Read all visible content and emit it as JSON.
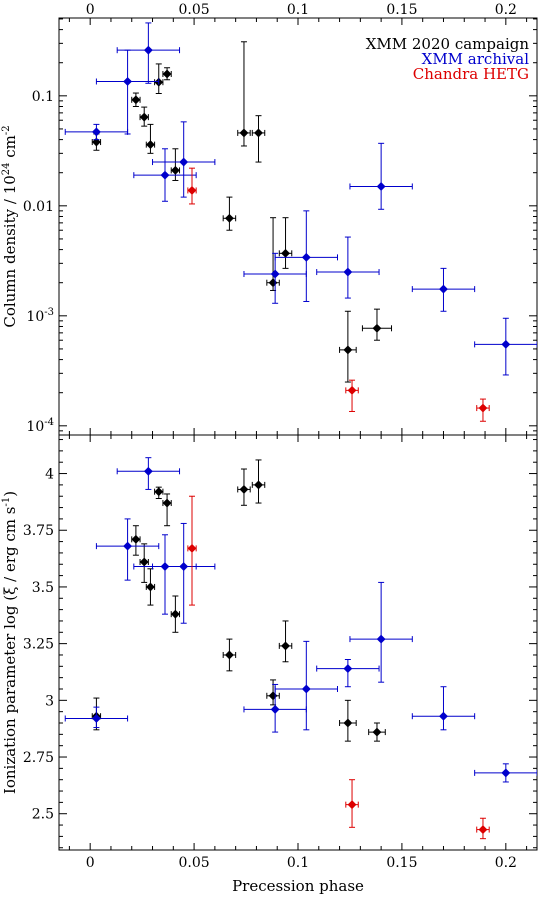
{
  "chart_data": [
    {
      "type": "scatter",
      "panel": "top",
      "ylabel": "Column density / 10",
      "ylabel_exp": "24",
      "ylabel_unit": " cm",
      "ylabel_unit_exp": "-2",
      "yscale": "log",
      "xlim": [
        -0.015,
        0.215
      ],
      "ylim": [
        8.25e-05,
        0.51
      ],
      "x_ticks": [
        0,
        0.05,
        0.1,
        0.15,
        0.2
      ],
      "x_tick_labels": [
        "0",
        "0.05",
        "0.1",
        "0.15",
        "0.2"
      ],
      "y_ticks": [
        0.1,
        0.01
      ],
      "y_tick_labels": [
        "0.1",
        "0.01"
      ],
      "y_ticks_pow": [
        {
          "value": 0.001,
          "base": "10",
          "exp": "-3"
        },
        {
          "value": 0.0001,
          "base": "10",
          "exp": "-4"
        }
      ],
      "legend_position": "top-right",
      "series": [
        {
          "name": "XMM 2020 campaign",
          "color": "#000000",
          "points": [
            {
              "x": 0.003,
              "xerr": 0.002,
              "y": 0.038,
              "ylo": 0.032,
              "yhi": 0.045
            },
            {
              "x": 0.022,
              "xerr": 0.002,
              "y": 0.092,
              "ylo": 0.08,
              "yhi": 0.106
            },
            {
              "x": 0.026,
              "xerr": 0.002,
              "y": 0.064,
              "ylo": 0.053,
              "yhi": 0.079
            },
            {
              "x": 0.029,
              "xerr": 0.002,
              "y": 0.036,
              "ylo": 0.03,
              "yhi": 0.055
            },
            {
              "x": 0.033,
              "xerr": 0.002,
              "y": 0.133,
              "ylo": 0.105,
              "yhi": 0.195
            },
            {
              "x": 0.037,
              "xerr": 0.002,
              "y": 0.158,
              "ylo": 0.14,
              "yhi": 0.18
            },
            {
              "x": 0.041,
              "xerr": 0.002,
              "y": 0.021,
              "ylo": 0.017,
              "yhi": 0.033
            },
            {
              "x": 0.067,
              "xerr": 0.003,
              "y": 0.0077,
              "ylo": 0.006,
              "yhi": 0.012
            },
            {
              "x": 0.074,
              "xerr": 0.003,
              "y": 0.046,
              "ylo": 0.035,
              "yhi": 0.31
            },
            {
              "x": 0.081,
              "xerr": 0.003,
              "y": 0.046,
              "ylo": 0.025,
              "yhi": 0.066
            },
            {
              "x": 0.088,
              "xerr": 0.003,
              "y": 0.002,
              "ylo": 0.0017,
              "yhi": 0.0078
            },
            {
              "x": 0.094,
              "xerr": 0.003,
              "y": 0.0037,
              "ylo": 0.0027,
              "yhi": 0.0078
            },
            {
              "x": 0.124,
              "xerr": 0.004,
              "y": 0.00049,
              "ylo": 0.00025,
              "yhi": 0.0011
            },
            {
              "x": 0.138,
              "xerr": 0.007,
              "y": 0.00077,
              "ylo": 0.0006,
              "yhi": 0.00115
            }
          ]
        },
        {
          "name": "XMM archival",
          "color": "#0000cc",
          "points": [
            {
              "x": 0.003,
              "xerr": 0.015,
              "y": 0.047,
              "ylo": 0.04,
              "yhi": 0.055
            },
            {
              "x": 0.018,
              "xerr": 0.015,
              "y": 0.135,
              "ylo": 0.045,
              "yhi": 0.26
            },
            {
              "x": 0.028,
              "xerr": 0.015,
              "y": 0.26,
              "ylo": 0.13,
              "yhi": 0.46
            },
            {
              "x": 0.036,
              "xerr": 0.015,
              "y": 0.019,
              "ylo": 0.011,
              "yhi": 0.033
            },
            {
              "x": 0.045,
              "xerr": 0.015,
              "y": 0.025,
              "ylo": 0.012,
              "yhi": 0.058
            },
            {
              "x": 0.089,
              "xerr": 0.015,
              "y": 0.0024,
              "ylo": 0.0013,
              "yhi": 0.0037
            },
            {
              "x": 0.104,
              "xerr": 0.015,
              "y": 0.0034,
              "ylo": 0.00135,
              "yhi": 0.009
            },
            {
              "x": 0.124,
              "xerr": 0.015,
              "y": 0.0025,
              "ylo": 0.00145,
              "yhi": 0.0052
            },
            {
              "x": 0.14,
              "xerr": 0.015,
              "y": 0.015,
              "ylo": 0.0093,
              "yhi": 0.037
            },
            {
              "x": 0.17,
              "xerr": 0.015,
              "y": 0.00175,
              "ylo": 0.0011,
              "yhi": 0.0027
            },
            {
              "x": 0.2,
              "xerr": 0.015,
              "y": 0.00055,
              "ylo": 0.00029,
              "yhi": 0.00095
            }
          ]
        },
        {
          "name": "Chandra HETG",
          "color": "#dd0000",
          "points": [
            {
              "x": 0.049,
              "xerr": 0.002,
              "y": 0.0138,
              "ylo": 0.0104,
              "yhi": 0.022
            },
            {
              "x": 0.126,
              "xerr": 0.003,
              "y": 0.00021,
              "ylo": 0.000135,
              "yhi": 0.00026
            },
            {
              "x": 0.189,
              "xerr": 0.003,
              "y": 0.000145,
              "ylo": 0.00011,
              "yhi": 0.000175
            }
          ]
        }
      ]
    },
    {
      "type": "scatter",
      "panel": "bottom",
      "xlabel": "Precession phase",
      "ylabel": "Ionization parameter log (ξ / erg cm s",
      "ylabel_exp": "-1",
      "ylabel_close": ")",
      "yscale": "linear",
      "xlim": [
        -0.015,
        0.215
      ],
      "ylim": [
        2.34,
        4.17
      ],
      "x_ticks": [
        0,
        0.05,
        0.1,
        0.15,
        0.2
      ],
      "x_tick_labels": [
        "0",
        "0.05",
        "0.1",
        "0.15",
        "0.2"
      ],
      "y_ticks": [
        2.5,
        2.75,
        3,
        3.25,
        3.5,
        3.75,
        4
      ],
      "y_tick_labels": [
        "2.5",
        "2.75",
        "3",
        "3.25",
        "3.5",
        "3.75",
        "4"
      ],
      "series": [
        {
          "name": "XMM 2020 campaign",
          "color": "#000000",
          "points": [
            {
              "x": 0.003,
              "xerr": 0.002,
              "y": 2.93,
              "ylo": 2.87,
              "yhi": 3.01
            },
            {
              "x": 0.022,
              "xerr": 0.002,
              "y": 3.71,
              "ylo": 3.64,
              "yhi": 3.77
            },
            {
              "x": 0.026,
              "xerr": 0.002,
              "y": 3.61,
              "ylo": 3.52,
              "yhi": 3.69
            },
            {
              "x": 0.029,
              "xerr": 0.002,
              "y": 3.5,
              "ylo": 3.42,
              "yhi": 3.58
            },
            {
              "x": 0.033,
              "xerr": 0.002,
              "y": 3.92,
              "ylo": 3.89,
              "yhi": 3.94
            },
            {
              "x": 0.037,
              "xerr": 0.002,
              "y": 3.87,
              "ylo": 3.77,
              "yhi": 3.91
            },
            {
              "x": 0.041,
              "xerr": 0.002,
              "y": 3.38,
              "ylo": 3.3,
              "yhi": 3.46
            },
            {
              "x": 0.067,
              "xerr": 0.003,
              "y": 3.2,
              "ylo": 3.13,
              "yhi": 3.27
            },
            {
              "x": 0.074,
              "xerr": 0.003,
              "y": 3.93,
              "ylo": 3.86,
              "yhi": 4.02
            },
            {
              "x": 0.081,
              "xerr": 0.003,
              "y": 3.95,
              "ylo": 3.87,
              "yhi": 4.06
            },
            {
              "x": 0.088,
              "xerr": 0.003,
              "y": 3.02,
              "ylo": 2.98,
              "yhi": 3.09
            },
            {
              "x": 0.094,
              "xerr": 0.003,
              "y": 3.24,
              "ylo": 3.17,
              "yhi": 3.35
            },
            {
              "x": 0.124,
              "xerr": 0.004,
              "y": 2.9,
              "ylo": 2.82,
              "yhi": 3.0
            },
            {
              "x": 0.138,
              "xerr": 0.004,
              "y": 2.86,
              "ylo": 2.82,
              "yhi": 2.9
            }
          ]
        },
        {
          "name": "XMM archival",
          "color": "#0000cc",
          "points": [
            {
              "x": 0.003,
              "xerr": 0.015,
              "y": 2.92,
              "ylo": 2.88,
              "yhi": 2.97
            },
            {
              "x": 0.018,
              "xerr": 0.015,
              "y": 3.68,
              "ylo": 3.53,
              "yhi": 3.8
            },
            {
              "x": 0.028,
              "xerr": 0.015,
              "y": 4.01,
              "ylo": 3.93,
              "yhi": 4.07
            },
            {
              "x": 0.036,
              "xerr": 0.015,
              "y": 3.59,
              "ylo": 3.38,
              "yhi": 3.73
            },
            {
              "x": 0.045,
              "xerr": 0.015,
              "y": 3.59,
              "ylo": 3.34,
              "yhi": 3.78
            },
            {
              "x": 0.089,
              "xerr": 0.015,
              "y": 2.96,
              "ylo": 2.86,
              "yhi": 3.07
            },
            {
              "x": 0.104,
              "xerr": 0.015,
              "y": 3.05,
              "ylo": 2.87,
              "yhi": 3.26
            },
            {
              "x": 0.124,
              "xerr": 0.015,
              "y": 3.14,
              "ylo": 3.06,
              "yhi": 3.18
            },
            {
              "x": 0.14,
              "xerr": 0.015,
              "y": 3.27,
              "ylo": 3.08,
              "yhi": 3.52
            },
            {
              "x": 0.17,
              "xerr": 0.015,
              "y": 2.93,
              "ylo": 2.87,
              "yhi": 3.06
            },
            {
              "x": 0.2,
              "xerr": 0.015,
              "y": 2.68,
              "ylo": 2.64,
              "yhi": 2.72
            }
          ]
        },
        {
          "name": "Chandra HETG",
          "color": "#dd0000",
          "points": [
            {
              "x": 0.049,
              "xerr": 0.002,
              "y": 3.67,
              "ylo": 3.42,
              "yhi": 3.9
            },
            {
              "x": 0.126,
              "xerr": 0.003,
              "y": 2.54,
              "ylo": 2.44,
              "yhi": 2.65
            },
            {
              "x": 0.189,
              "xerr": 0.003,
              "y": 2.43,
              "ylo": 2.39,
              "yhi": 2.48
            }
          ]
        }
      ]
    }
  ]
}
